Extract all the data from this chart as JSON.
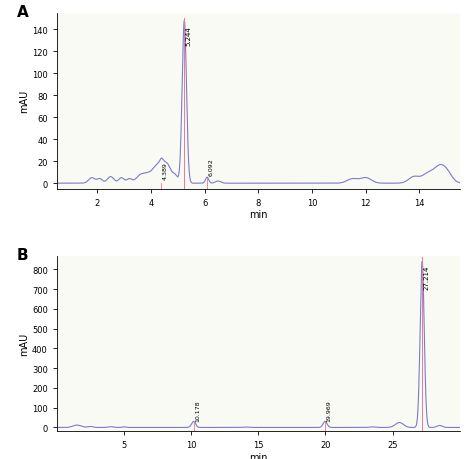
{
  "panel_A": {
    "label": "A",
    "ylabel": "mAU",
    "xlabel": "min",
    "xlim": [
      0.5,
      15.5
    ],
    "ylim": [
      -5,
      155
    ],
    "yticks": [
      0,
      20,
      40,
      60,
      80,
      100,
      120,
      140
    ],
    "xticks": [
      2,
      4,
      6,
      8,
      10,
      12,
      14
    ],
    "main_peak_x": 5.244,
    "main_peak_y": 148,
    "main_peak_label": "5.244",
    "minor_peak1_x": 4.389,
    "minor_peak1_y": 2.5,
    "minor_peak1_label": "4.389",
    "minor_peak2_x": 6.092,
    "minor_peak2_y": 5.5,
    "minor_peak2_label": "6.092",
    "line_color": "#7b7bc8",
    "pink_line_color": "#e87a9a",
    "bg_color": "#fafaf5"
  },
  "panel_B": {
    "label": "B",
    "ylabel": "mAU",
    "xlabel": "min",
    "xlim": [
      0,
      30
    ],
    "ylim": [
      -20,
      870
    ],
    "yticks": [
      0,
      100,
      200,
      300,
      400,
      500,
      600,
      700,
      800
    ],
    "xticks": [
      5,
      10,
      15,
      20,
      25
    ],
    "main_peak_x": 27.2,
    "main_peak_y": 840,
    "main_peak_label": "27.214",
    "minor_peak1_x": 10.178,
    "minor_peak1_y": 30,
    "minor_peak1_label": "10.178",
    "minor_peak2_x": 19.969,
    "minor_peak2_y": 30,
    "minor_peak2_label": "19.969",
    "line_color": "#7b7bc8",
    "pink_line_color": "#e87a9a",
    "bg_color": "#fafaf5"
  }
}
